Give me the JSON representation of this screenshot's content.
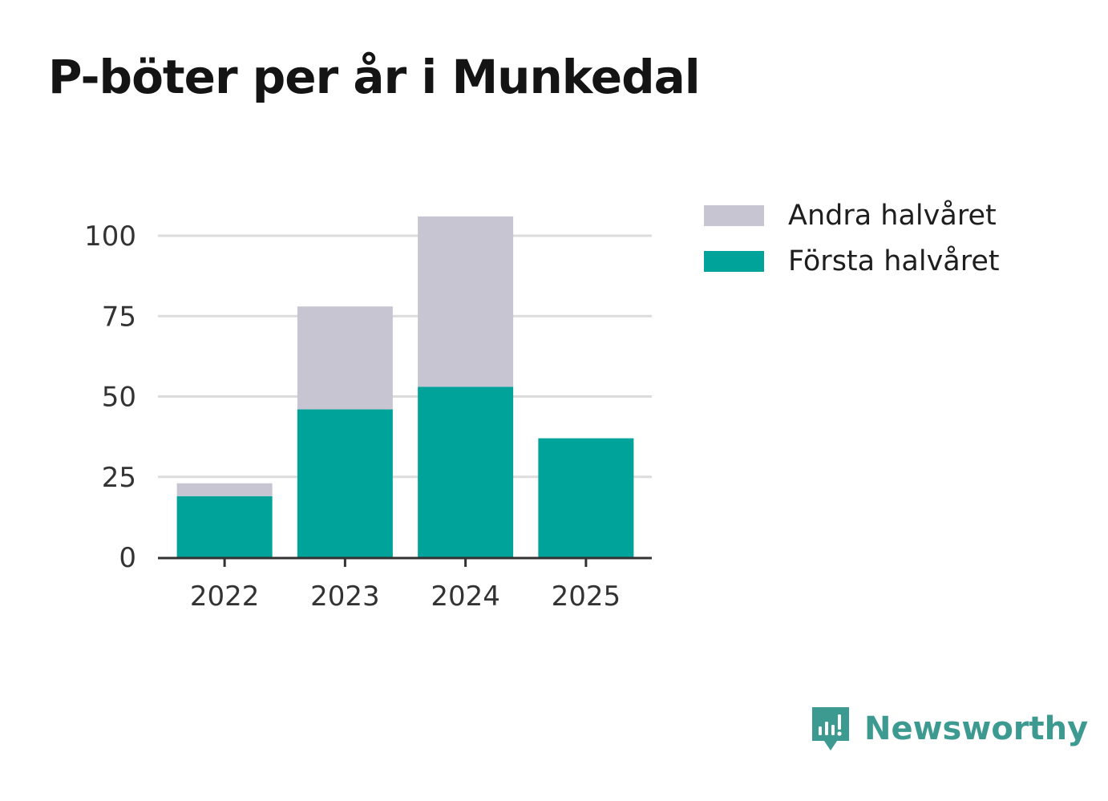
{
  "title": "P-böter per år i Munkedal",
  "chart_data": {
    "type": "bar",
    "stacked": true,
    "categories": [
      "2022",
      "2023",
      "2024",
      "2025"
    ],
    "series": [
      {
        "name": "Första halvåret",
        "color": "#00a39a",
        "values": [
          19,
          46,
          53,
          37
        ]
      },
      {
        "name": "Andra halvåret",
        "color": "#c6c5d1",
        "values": [
          4,
          32,
          53,
          0
        ]
      }
    ],
    "yticks": [
      0,
      25,
      50,
      75,
      100
    ],
    "ylim": [
      0,
      106
    ],
    "grid": true,
    "legend_position": "top-right"
  },
  "legend": {
    "items": [
      {
        "label": "Andra halvåret",
        "color": "#c6c5d1"
      },
      {
        "label": "Första halvåret",
        "color": "#00a39a"
      }
    ]
  },
  "brand": {
    "name": "Newsworthy",
    "icon": "newsworthy-logo-icon",
    "color": "#3d9a91"
  }
}
